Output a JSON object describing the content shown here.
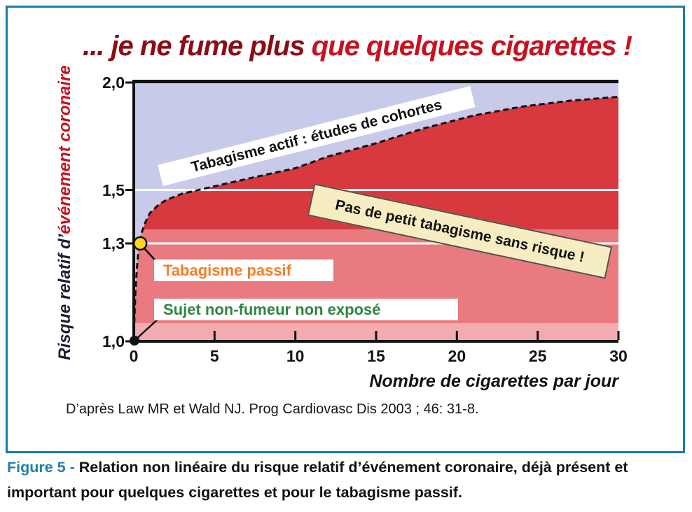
{
  "title": {
    "prefix": "... je ne fume plus ",
    "highlight": "que quelques cigarettes !"
  },
  "chart_data": {
    "type": "area",
    "xlabel": "Nombre de cigarettes par jour",
    "ylabel_part1": "Risque relatif d’",
    "ylabel_part2": "événement coronaire",
    "xlim": [
      0,
      30
    ],
    "ylim": [
      1.0,
      2.0
    ],
    "y_scale": "log2",
    "x_ticks": [
      0,
      5,
      10,
      15,
      20,
      25,
      30
    ],
    "x_tick_labels": [
      "0",
      "5",
      "10",
      "15",
      "20",
      "25",
      "30"
    ],
    "y_ticks": [
      1.0,
      1.3,
      1.5,
      2.0
    ],
    "y_tick_labels": [
      "1,0",
      "1,3",
      "1,5",
      "2,0"
    ],
    "gridlines_y": [
      1.3,
      1.5
    ],
    "curve": {
      "name": "Tabagisme actif : études de cohortes",
      "style": "dashed",
      "x": [
        0,
        0.05,
        0.1,
        0.2,
        0.3,
        0.5,
        0.75,
        1,
        1.5,
        2,
        3,
        4,
        5,
        6,
        8,
        10,
        12,
        15,
        18,
        21,
        24,
        27,
        30
      ],
      "rr": [
        1.0,
        1.08,
        1.14,
        1.22,
        1.28,
        1.34,
        1.38,
        1.41,
        1.44,
        1.46,
        1.485,
        1.5,
        1.515,
        1.53,
        1.56,
        1.59,
        1.64,
        1.7,
        1.77,
        1.83,
        1.875,
        1.905,
        1.925
      ]
    },
    "bands": [
      {
        "from": 1.0,
        "to": 1.05,
        "color": "#f2abae"
      },
      {
        "from": 1.05,
        "to": 1.35,
        "color": "#e87a80"
      }
    ],
    "points": [
      {
        "kind": "passive",
        "label": "Tabagisme passif",
        "x": 0.4,
        "rr": 1.3
      },
      {
        "kind": "nonsmoker",
        "label": "Sujet non-fumeur non exposé",
        "x": 0,
        "rr": 1.0
      }
    ],
    "annotations": {
      "active_banner": "Tabagisme actif : études de cohortes",
      "warning_banner": "Pas de petit tabagisme sans risque !",
      "passive_label": "Tabagisme passif",
      "nonsmoker_label": "Sujet non-fumeur non exposé"
    }
  },
  "source": "D’après Law MR et Wald NJ. Prog Cardiovasc Dis 2003 ; 46: 31-8.",
  "caption": {
    "label": "Figure 5 - ",
    "line1": "Relation non linéaire du risque relatif d’événement coronaire, déjà présent et",
    "line2": "important pour quelques cigarettes et pour le tabagisme passif."
  },
  "colors": {
    "frame_blue": "#1b79a7",
    "lavender": "#c7cae8",
    "risk_red": "#d7393f",
    "band_mid_pink": "#e87a80",
    "band_light_pink": "#f2abae",
    "banner_yellow_bg": "#f7edc3",
    "banner_yellow_border": "#55524a",
    "orange_text": "#f57e22",
    "green_text": "#2e8540",
    "title_dark_red": "#8a0d16",
    "title_bright_red": "#c6121f",
    "figure_label_blue": "#2180ad",
    "dot_yellow": "#ffd31e",
    "axis_black": "#111111",
    "gridline_white": "#ffffff"
  }
}
